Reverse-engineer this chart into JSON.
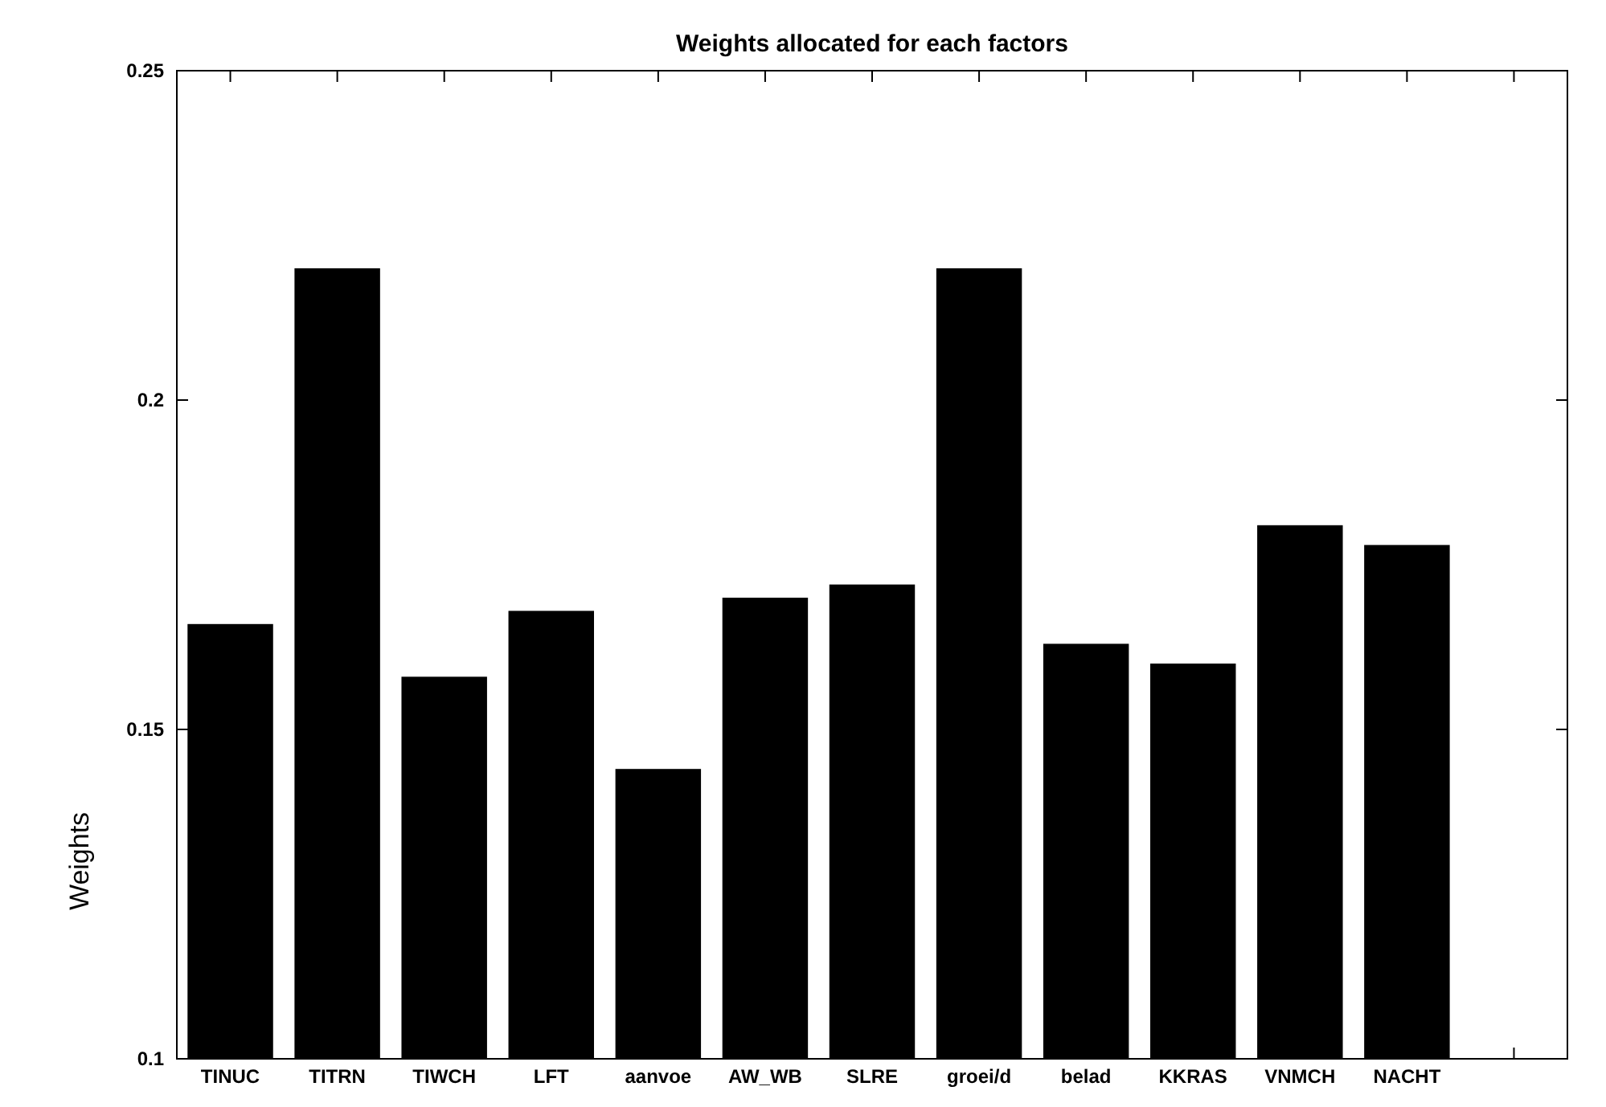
{
  "chart_data": {
    "type": "bar",
    "title": "Weights allocated for each factors",
    "ylabel": "Weights",
    "categories": [
      "TINUC",
      "TITRN",
      "TIWCH",
      "LFT",
      "aanvoe",
      "AW_WB",
      "SLRE",
      "groei/d",
      "belad",
      "KKRAS",
      "VNMCH",
      "NACHT"
    ],
    "values": [
      0.166,
      0.22,
      0.158,
      0.168,
      0.144,
      0.17,
      0.172,
      0.22,
      0.163,
      0.16,
      0.181,
      0.178
    ],
    "color": "#000000",
    "ylim": [
      0.1,
      0.25
    ],
    "yticks": [
      0.1,
      0.15,
      0.2,
      0.25
    ],
    "grid": false
  }
}
